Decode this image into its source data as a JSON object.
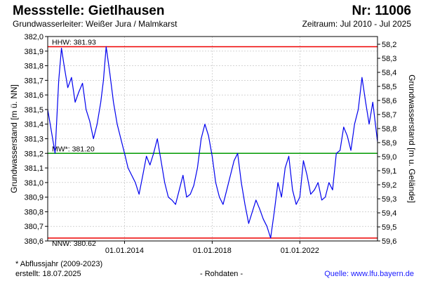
{
  "header": {
    "station": "Messstelle: Gietlhausen",
    "number": "Nr: 11006",
    "aquifer": "Grundwasserleiter:  Weißer Jura / Malmkarst",
    "period": "Zeitraum: Jul 2010 - Jul 2025"
  },
  "footer": {
    "note": "* Abflussjahr (2009-2023)",
    "created": "erstellt:  18.07.2025",
    "rawdata": "- Rohdaten -",
    "source": "Quelle:  www.lfu.bayern.de"
  },
  "colors": {
    "series": "#0000ee",
    "hhw": "#ee0000",
    "nnw": "#ee0000",
    "mw": "#009900",
    "grid": "#bbbbbb"
  },
  "chart_data": {
    "type": "line",
    "ylabel": "Grundwasserstand [m ü. NN]",
    "y2label": "Grundwasserstand [m u. Gelände]",
    "ylim": [
      380.6,
      382.0
    ],
    "yticks": [
      "382,0",
      "381,9",
      "381,8",
      "381,7",
      "381,6",
      "381,5",
      "381,4",
      "381,3",
      "381,2",
      "381,1",
      "381,0",
      "380,9",
      "380,8",
      "380,7",
      "380,6"
    ],
    "y2ticks": [
      "58,2",
      "58,3",
      "58,4",
      "58,5",
      "58,6",
      "58,7",
      "58,8",
      "58,9",
      "59,0",
      "59,1",
      "59,2",
      "59,3",
      "59,4",
      "59,5",
      "59,6"
    ],
    "xlim": [
      "2010-07-01",
      "2025-07-18"
    ],
    "xticks": [
      {
        "date": "2014-01-01",
        "label": "01.01.2014"
      },
      {
        "date": "2018-01-01",
        "label": "01.01.2018"
      },
      {
        "date": "2022-01-01",
        "label": "01.01.2022"
      }
    ],
    "grid": true,
    "reference_lines": [
      {
        "label": "HHW: 381.93",
        "value": 381.93,
        "color": "hhw"
      },
      {
        "label": "MW*: 381.20",
        "value": 381.2,
        "color": "mw"
      },
      {
        "label": "NNW: 380.62",
        "value": 380.62,
        "color": "nnw"
      }
    ],
    "series": [
      {
        "x": [
          "2010-07-01",
          "2010-09-01",
          "2010-11-01",
          "2011-01-01",
          "2011-02-15",
          "2011-04-01",
          "2011-06-01",
          "2011-08-01",
          "2011-10-01",
          "2011-12-01",
          "2012-02-01",
          "2012-04-01",
          "2012-06-01",
          "2012-08-01",
          "2012-10-01",
          "2012-12-01",
          "2013-01-15",
          "2013-03-01",
          "2013-05-01",
          "2013-07-01",
          "2013-09-01",
          "2013-11-01",
          "2014-01-01",
          "2014-03-01",
          "2014-05-01",
          "2014-07-01",
          "2014-09-01",
          "2014-11-01",
          "2015-01-01",
          "2015-03-01",
          "2015-05-01",
          "2015-07-01",
          "2015-09-01",
          "2015-11-01",
          "2016-01-01",
          "2016-03-01",
          "2016-05-01",
          "2016-07-01",
          "2016-09-01",
          "2016-11-01",
          "2017-01-01",
          "2017-03-01",
          "2017-05-01",
          "2017-07-01",
          "2017-09-01",
          "2017-11-01",
          "2018-01-01",
          "2018-03-01",
          "2018-05-01",
          "2018-07-01",
          "2018-09-01",
          "2018-11-01",
          "2019-01-01",
          "2019-03-01",
          "2019-05-01",
          "2019-07-01",
          "2019-09-01",
          "2019-11-01",
          "2020-01-01",
          "2020-03-01",
          "2020-05-01",
          "2020-07-01",
          "2020-09-01",
          "2020-11-01",
          "2021-01-01",
          "2021-03-01",
          "2021-05-01",
          "2021-07-01",
          "2021-09-01",
          "2021-11-01",
          "2022-01-01",
          "2022-03-01",
          "2022-05-01",
          "2022-07-01",
          "2022-09-01",
          "2022-11-01",
          "2023-01-01",
          "2023-03-01",
          "2023-05-01",
          "2023-07-01",
          "2023-09-01",
          "2023-11-01",
          "2024-01-01",
          "2024-03-01",
          "2024-05-01",
          "2024-07-01",
          "2024-09-01",
          "2024-11-01",
          "2025-01-01",
          "2025-03-01",
          "2025-05-01",
          "2025-07-18"
        ],
        "y": [
          381.5,
          381.35,
          381.2,
          381.7,
          381.92,
          381.8,
          381.65,
          381.72,
          381.55,
          381.62,
          381.68,
          381.5,
          381.42,
          381.3,
          381.4,
          381.55,
          381.7,
          381.93,
          381.75,
          381.55,
          381.4,
          381.3,
          381.2,
          381.1,
          381.05,
          381.0,
          380.92,
          381.05,
          381.18,
          381.12,
          381.2,
          381.3,
          381.15,
          381.0,
          380.9,
          380.88,
          380.85,
          380.95,
          381.05,
          380.9,
          380.92,
          380.98,
          381.1,
          381.3,
          381.4,
          381.32,
          381.18,
          381.0,
          380.9,
          380.85,
          380.95,
          381.05,
          381.15,
          381.2,
          381.0,
          380.85,
          380.72,
          380.8,
          380.88,
          380.82,
          380.75,
          380.7,
          380.62,
          380.8,
          381.0,
          380.9,
          381.1,
          381.18,
          380.95,
          380.85,
          380.9,
          381.15,
          381.05,
          380.92,
          380.95,
          381.0,
          380.88,
          380.9,
          381.0,
          380.95,
          381.2,
          381.22,
          381.38,
          381.32,
          381.22,
          381.4,
          381.5,
          381.72,
          381.55,
          381.4,
          381.55,
          381.28
        ]
      }
    ]
  }
}
